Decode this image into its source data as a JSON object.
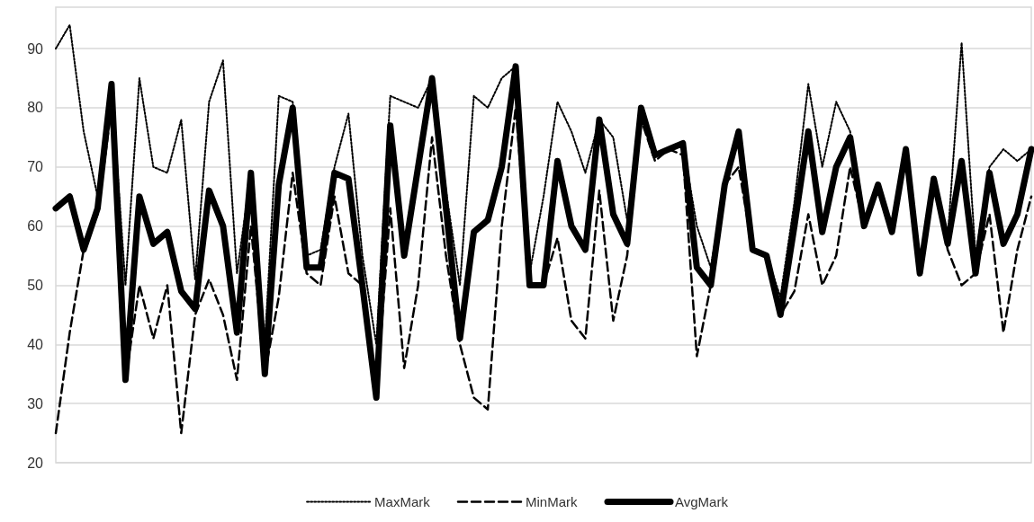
{
  "chart_data": {
    "type": "line",
    "categories": [
      null,
      null,
      null,
      null,
      null,
      null,
      null,
      null,
      null,
      null,
      null,
      null,
      null,
      null,
      null,
      null,
      null,
      null,
      null,
      null,
      null,
      null,
      null,
      null,
      null,
      null,
      null,
      null,
      null,
      null,
      null,
      null,
      null,
      null,
      null,
      null,
      null,
      null,
      null,
      null,
      null,
      null,
      null,
      null,
      null,
      null,
      null,
      null,
      null,
      null,
      null,
      null,
      null,
      null,
      null,
      null,
      null,
      null,
      null,
      null,
      null,
      null,
      null,
      null,
      null,
      null,
      null,
      null,
      null,
      null,
      null
    ],
    "series": [
      {
        "name": "MaxMark",
        "color": "#000000",
        "line_style": "dotted",
        "values": [
          90,
          94,
          76,
          65,
          84,
          50,
          85,
          70,
          69,
          78,
          51,
          81,
          88,
          52,
          69,
          40,
          82,
          81,
          55,
          56,
          70,
          79,
          55,
          40,
          82,
          81,
          80,
          85,
          66,
          50,
          82,
          80,
          85,
          87,
          52,
          65,
          81,
          76,
          69,
          78,
          75,
          61,
          80,
          72,
          73,
          74,
          60,
          53,
          67,
          76,
          56,
          55,
          48,
          64,
          84,
          70,
          81,
          76,
          60,
          67,
          59,
          73,
          52,
          68,
          58,
          91,
          55,
          70,
          73,
          71,
          73
        ]
      },
      {
        "name": "MinMark",
        "color": "#000000",
        "line_style": "dashed",
        "values": [
          25,
          42,
          56,
          62,
          80,
          34,
          50,
          41,
          50,
          25,
          45,
          51,
          45,
          34,
          60,
          35,
          48,
          69,
          52,
          50,
          65,
          52,
          50,
          31,
          63,
          36,
          50,
          75,
          55,
          40,
          31,
          29,
          60,
          80,
          50,
          50,
          58,
          44,
          41,
          66,
          44,
          55,
          78,
          71,
          73,
          72,
          38,
          50,
          67,
          70,
          56,
          55,
          45,
          49,
          62,
          50,
          55,
          70,
          60,
          67,
          59,
          73,
          52,
          68,
          56,
          50,
          52,
          62,
          42,
          56,
          65
        ]
      },
      {
        "name": "AvgMark",
        "color": "#000000",
        "line_style": "solid",
        "values": [
          63,
          65,
          56,
          63,
          84,
          34,
          65,
          57,
          59,
          49,
          46,
          66,
          60,
          42,
          69,
          35,
          67,
          80,
          53,
          53,
          69,
          68,
          50,
          31,
          77,
          55,
          70,
          85,
          63,
          41,
          59,
          61,
          70,
          87,
          50,
          50,
          71,
          60,
          56,
          78,
          62,
          57,
          80,
          72,
          73,
          74,
          53,
          50,
          67,
          76,
          56,
          55,
          45,
          60,
          76,
          59,
          70,
          75,
          60,
          67,
          59,
          73,
          52,
          68,
          57,
          71,
          52,
          69,
          57,
          62,
          73
        ]
      }
    ],
    "ylim": [
      20,
      97
    ],
    "yticks": [
      20,
      30,
      40,
      50,
      60,
      70,
      80,
      90
    ],
    "grid": "y",
    "legend": "bottom",
    "marker": "none"
  }
}
